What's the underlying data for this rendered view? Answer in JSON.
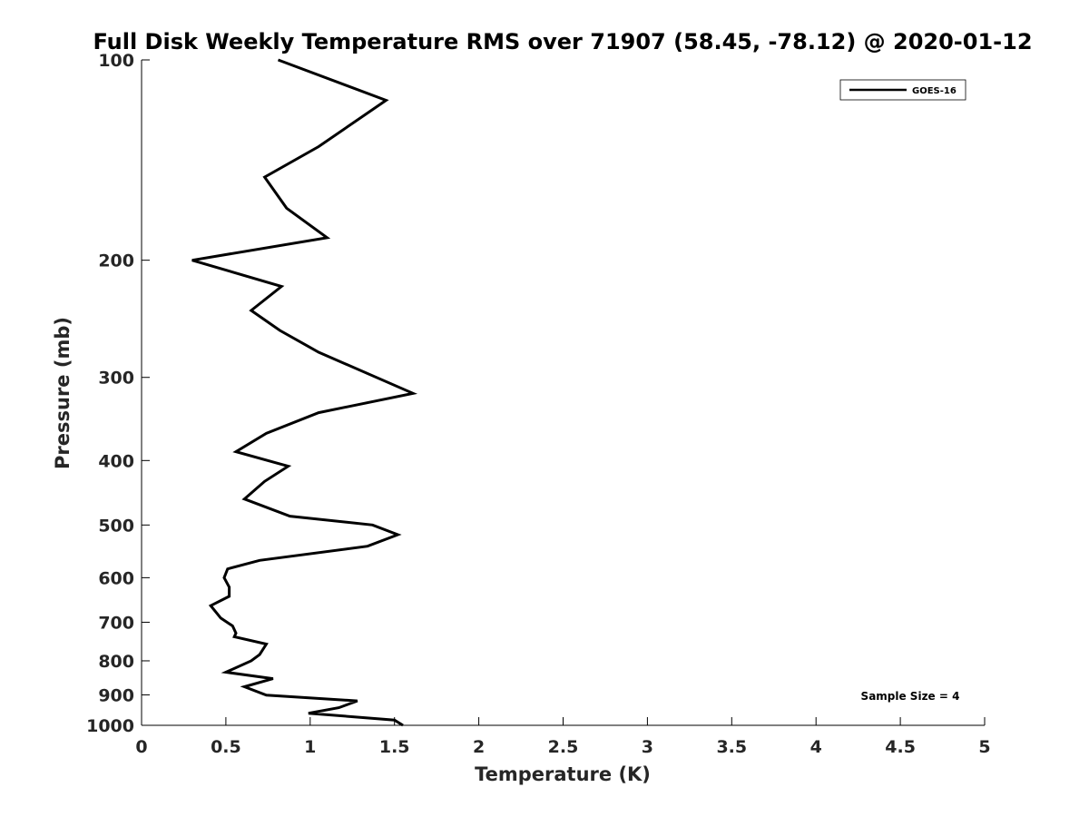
{
  "chart_data": {
    "type": "line",
    "title": "Full Disk Weekly Temperature RMS over 71907 (58.45, -78.12) @ 2020-01-12",
    "xlabel": "Temperature (K)",
    "ylabel": "Pressure (mb)",
    "xlim": [
      0,
      5
    ],
    "ylim": [
      1000,
      100
    ],
    "yscale": "log",
    "x_ticks": [
      0,
      0.5,
      1,
      1.5,
      2,
      2.5,
      3,
      3.5,
      4,
      4.5,
      5
    ],
    "x_tick_labels": [
      "0",
      "0.5",
      "1",
      "1.5",
      "2",
      "2.5",
      "3",
      "3.5",
      "4",
      "4.5",
      "5"
    ],
    "y_ticks": [
      100,
      200,
      300,
      400,
      500,
      600,
      700,
      800,
      900,
      1000
    ],
    "y_tick_labels": [
      "100",
      "200",
      "300",
      "400",
      "500",
      "600",
      "700",
      "800",
      "900",
      "1000"
    ],
    "grid": false,
    "legend_position": "top-right",
    "annotation": "Sample Size = 4",
    "series": [
      {
        "name": "GOES-16",
        "color": "#000000",
        "points": [
          [
            0.81,
            100
          ],
          [
            1.45,
            115
          ],
          [
            1.05,
            135
          ],
          [
            0.73,
            150
          ],
          [
            0.86,
            167
          ],
          [
            1.1,
            185
          ],
          [
            0.3,
            200
          ],
          [
            0.83,
            219
          ],
          [
            0.65,
            238
          ],
          [
            0.82,
            255
          ],
          [
            1.05,
            275
          ],
          [
            1.61,
            317
          ],
          [
            1.05,
            339
          ],
          [
            0.74,
            364
          ],
          [
            0.56,
            388
          ],
          [
            0.87,
            408
          ],
          [
            0.73,
            430
          ],
          [
            0.61,
            457
          ],
          [
            0.88,
            485
          ],
          [
            1.37,
            500
          ],
          [
            1.52,
            517
          ],
          [
            1.34,
            538
          ],
          [
            0.7,
            565
          ],
          [
            0.51,
            582
          ],
          [
            0.49,
            600
          ],
          [
            0.52,
            620
          ],
          [
            0.52,
            640
          ],
          [
            0.41,
            661
          ],
          [
            0.47,
            690
          ],
          [
            0.54,
            709
          ],
          [
            0.56,
            727
          ],
          [
            0.55,
            736
          ],
          [
            0.74,
            755
          ],
          [
            0.7,
            783
          ],
          [
            0.65,
            800
          ],
          [
            0.5,
            832
          ],
          [
            0.78,
            851
          ],
          [
            0.61,
            875
          ],
          [
            0.74,
            901
          ],
          [
            1.28,
            919
          ],
          [
            1.17,
            941
          ],
          [
            0.99,
            959
          ],
          [
            1.5,
            982
          ],
          [
            1.55,
            1000
          ]
        ]
      }
    ]
  }
}
